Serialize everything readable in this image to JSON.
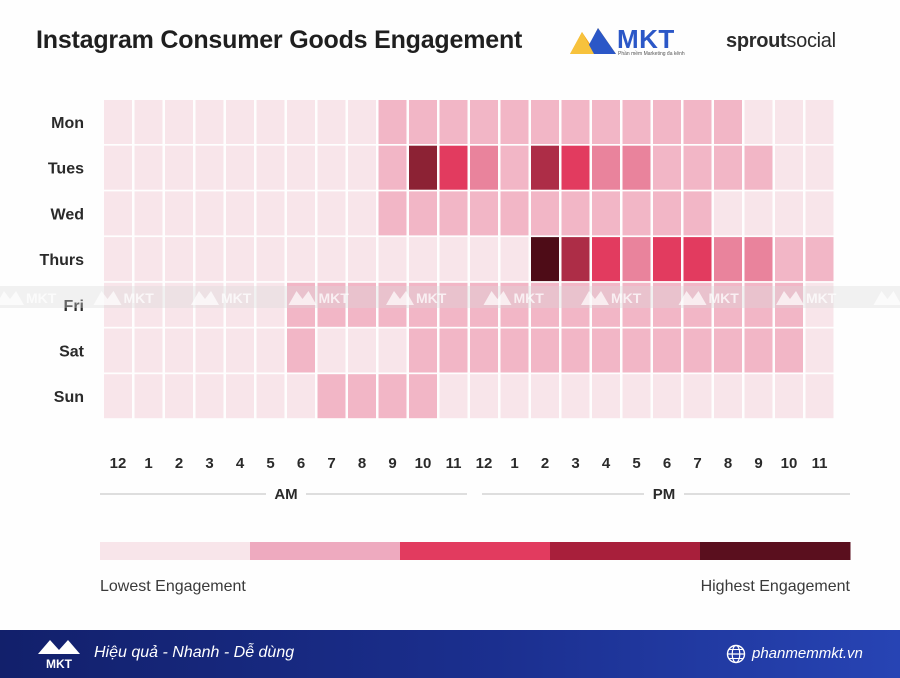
{
  "title": "Instagram Consumer Goods Engagement",
  "logo": {
    "name": "MKT",
    "tagline": "Phần mềm Marketing đa kênh"
  },
  "brand": {
    "part1": "sprout",
    "part2": "social"
  },
  "watermark": "MKT",
  "colors": {
    "level0": "#f8e5ea",
    "level1": "#f2b6c6",
    "level2": "#e9839c",
    "level3": "#e23b5f",
    "level4": "#ad2d47",
    "level5": "#8c2234",
    "level6": "#4e0c17"
  },
  "chart_data": {
    "type": "heatmap",
    "title": "Instagram Consumer Goods Engagement",
    "rows": [
      "Mon",
      "Tues",
      "Wed",
      "Thurs",
      "Fri",
      "Sat",
      "Sun"
    ],
    "columns": [
      "12",
      "1",
      "2",
      "3",
      "4",
      "5",
      "6",
      "7",
      "8",
      "9",
      "10",
      "11",
      "12",
      "1",
      "2",
      "3",
      "4",
      "5",
      "6",
      "7",
      "8",
      "9",
      "10",
      "11"
    ],
    "periods": [
      "AM",
      "PM"
    ],
    "scale_note": "levels 0 (lowest) to 6 (highest engagement)",
    "values": [
      [
        0,
        0,
        0,
        0,
        0,
        0,
        0,
        0,
        0,
        1,
        1,
        1,
        1,
        1,
        1,
        1,
        1,
        1,
        1,
        1,
        1,
        0,
        0,
        0
      ],
      [
        0,
        0,
        0,
        0,
        0,
        0,
        0,
        0,
        0,
        1,
        5,
        3,
        2,
        1,
        4,
        3,
        2,
        2,
        1,
        1,
        1,
        1,
        0,
        0
      ],
      [
        0,
        0,
        0,
        0,
        0,
        0,
        0,
        0,
        0,
        1,
        1,
        1,
        1,
        1,
        1,
        1,
        1,
        1,
        1,
        1,
        0,
        0,
        0,
        0
      ],
      [
        0,
        0,
        0,
        0,
        0,
        0,
        0,
        0,
        0,
        0,
        0,
        0,
        0,
        0,
        6,
        4,
        3,
        2,
        3,
        3,
        2,
        2,
        1,
        1
      ],
      [
        0,
        0,
        0,
        0,
        0,
        0,
        1,
        1,
        1,
        1,
        1,
        1,
        1,
        1,
        1,
        1,
        1,
        1,
        1,
        1,
        1,
        1,
        1,
        0
      ],
      [
        0,
        0,
        0,
        0,
        0,
        0,
        1,
        0,
        0,
        0,
        1,
        1,
        1,
        1,
        1,
        1,
        1,
        1,
        1,
        1,
        1,
        1,
        1,
        0
      ],
      [
        0,
        0,
        0,
        0,
        0,
        0,
        0,
        1,
        1,
        1,
        1,
        0,
        0,
        0,
        0,
        0,
        0,
        0,
        0,
        0,
        0,
        0,
        0,
        0
      ]
    ],
    "legend": {
      "low_label": "Lowest Engagement",
      "high_label": "Highest Engagement",
      "colors": [
        "#f8e5ea",
        "#eeaabf",
        "#e23b5f",
        "#a81f3b",
        "#5a0f1e"
      ]
    }
  },
  "footer": {
    "slogan": "Hiệu quả - Nhanh - Dễ dùng",
    "website": "phanmemmkt.vn"
  }
}
